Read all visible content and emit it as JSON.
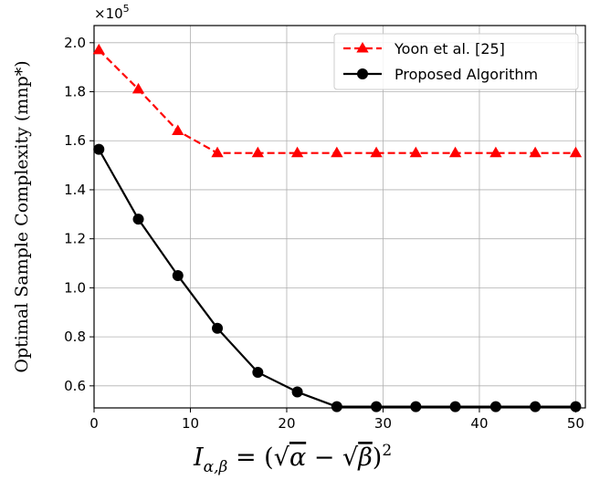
{
  "chart_data": {
    "type": "line",
    "xlabel": "I_{α,β} = (√α − √β)²",
    "xlabel_parts": {
      "main": "I",
      "sub": "α,β",
      "eq": " = (",
      "sqrt1": "√",
      "alpha": "α",
      "minus": " − ",
      "sqrt2": "√",
      "beta": "β",
      "close": ")",
      "sup": "2"
    },
    "ylabel": "Optimal Sample Complexity (mnp*)",
    "y_multiplier_label": "×10",
    "y_multiplier_exp": "5",
    "xlim": [
      0,
      51
    ],
    "ylim": [
      0.51,
      2.07
    ],
    "xticks": [
      0,
      10,
      20,
      30,
      40,
      50
    ],
    "yticks": [
      0.6,
      0.8,
      1.0,
      1.2,
      1.4,
      1.6,
      1.8,
      2.0
    ],
    "ytick_labels": [
      "0.6",
      "0.8",
      "1.0",
      "1.2",
      "1.4",
      "1.6",
      "1.8",
      "2.0"
    ],
    "grid": true,
    "legend_position": "top-right",
    "series": [
      {
        "name": "Yoon et al. [25]",
        "color": "#ff0000",
        "linestyle": "dashed",
        "marker": "triangle",
        "x": [
          0.5,
          4.6,
          8.7,
          12.8,
          17.0,
          21.1,
          25.2,
          29.3,
          33.4,
          37.5,
          41.7,
          45.8,
          50.0
        ],
        "y": [
          1.97,
          1.81,
          1.64,
          1.55,
          1.55,
          1.55,
          1.55,
          1.55,
          1.55,
          1.55,
          1.55,
          1.55,
          1.55
        ]
      },
      {
        "name": "Proposed Algorithm",
        "color": "#000000",
        "linestyle": "solid",
        "marker": "circle",
        "x": [
          0.5,
          4.6,
          8.7,
          12.8,
          17.0,
          21.1,
          25.2,
          29.3,
          33.4,
          37.5,
          41.7,
          45.8,
          50.0
        ],
        "y": [
          1.565,
          1.28,
          1.05,
          0.835,
          0.655,
          0.575,
          0.515,
          0.515,
          0.515,
          0.515,
          0.515,
          0.515,
          0.515
        ]
      }
    ]
  }
}
